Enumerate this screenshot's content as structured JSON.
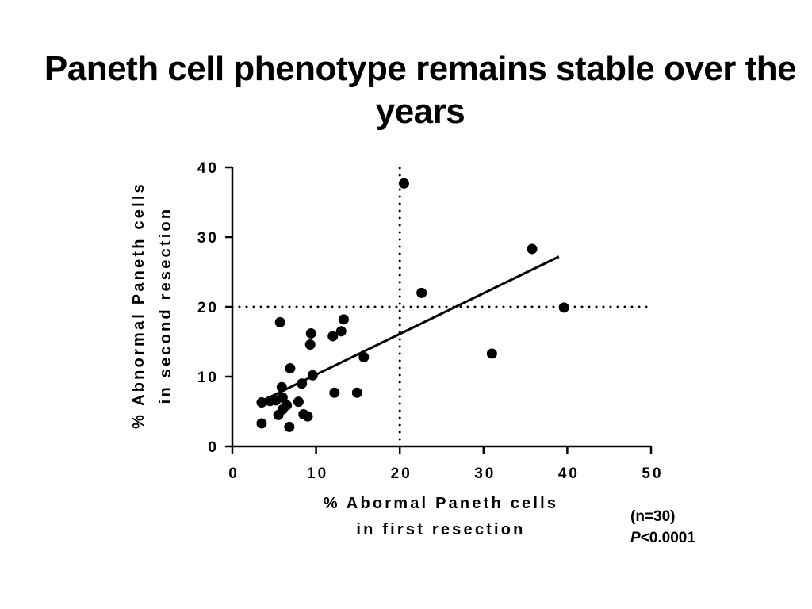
{
  "slide": {
    "title": "Paneth cell phenotype remains stable over the years"
  },
  "annotations": {
    "n": "(n=30)",
    "p_symbol": "P",
    "p_value": "<0.0001"
  },
  "colors": {
    "points": "#000000",
    "axes": "#000000",
    "background": "#ffffff"
  },
  "chart_data": {
    "type": "scatter",
    "title": "Paneth cell phenotype remains stable over the years",
    "xlabel_lines": [
      "% Abormal Paneth cells",
      "in first resection"
    ],
    "ylabel_lines": [
      "% Abnormal Paneth cells",
      "in second resection"
    ],
    "xlim": [
      0,
      50
    ],
    "ylim": [
      0,
      40
    ],
    "x_ticks": [
      0,
      10,
      20,
      30,
      40,
      50
    ],
    "y_ticks": [
      0,
      10,
      20,
      30,
      40
    ],
    "grid": false,
    "reference_lines": [
      {
        "orientation": "vertical",
        "value": 20,
        "style": "dotted"
      },
      {
        "orientation": "horizontal",
        "value": 20,
        "style": "dotted"
      }
    ],
    "regression_line": {
      "x": [
        3.5,
        39
      ],
      "y": [
        6.5,
        27.2
      ]
    },
    "points": [
      {
        "x": 3.5,
        "y": 3.3
      },
      {
        "x": 3.5,
        "y": 6.3
      },
      {
        "x": 4.5,
        "y": 6.5
      },
      {
        "x": 5.2,
        "y": 6.6
      },
      {
        "x": 5.5,
        "y": 4.5
      },
      {
        "x": 5.7,
        "y": 17.8
      },
      {
        "x": 5.9,
        "y": 8.5
      },
      {
        "x": 6.0,
        "y": 7.0
      },
      {
        "x": 6.0,
        "y": 5.3
      },
      {
        "x": 6.5,
        "y": 5.9
      },
      {
        "x": 6.8,
        "y": 2.8
      },
      {
        "x": 6.9,
        "y": 11.2
      },
      {
        "x": 7.9,
        "y": 6.4
      },
      {
        "x": 8.3,
        "y": 9.0
      },
      {
        "x": 8.5,
        "y": 4.6
      },
      {
        "x": 9.0,
        "y": 4.3
      },
      {
        "x": 9.3,
        "y": 14.6
      },
      {
        "x": 9.4,
        "y": 16.2
      },
      {
        "x": 9.6,
        "y": 10.2
      },
      {
        "x": 12.0,
        "y": 15.8
      },
      {
        "x": 12.2,
        "y": 7.7
      },
      {
        "x": 13.0,
        "y": 16.5
      },
      {
        "x": 13.3,
        "y": 18.2
      },
      {
        "x": 14.9,
        "y": 7.7
      },
      {
        "x": 15.7,
        "y": 12.8
      },
      {
        "x": 20.5,
        "y": 37.7
      },
      {
        "x": 22.6,
        "y": 22.0
      },
      {
        "x": 31.0,
        "y": 13.3
      },
      {
        "x": 35.8,
        "y": 28.3
      },
      {
        "x": 39.6,
        "y": 19.9
      }
    ]
  }
}
